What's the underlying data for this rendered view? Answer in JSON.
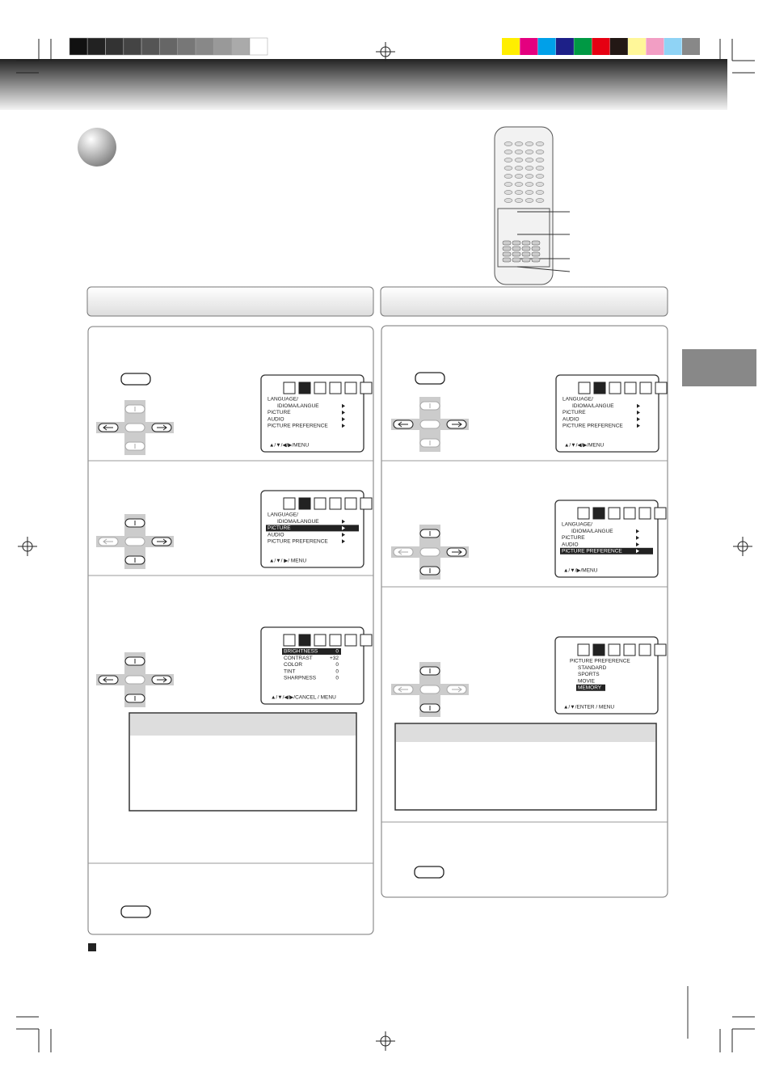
{
  "left_column": {
    "screens": [
      {
        "lines": [
          "LANGUAGE/",
          "IDIOMA/LANGUE",
          "PICTURE",
          "AUDIO",
          "PICTURE  PREFERENCE"
        ],
        "footer": "▲/▼/◀/▶/MENU"
      },
      {
        "lines": [
          "LANGUAGE/",
          "IDIOMA/LANGUE",
          "PICTURE",
          "AUDIO",
          "PICTURE  PREFERENCE"
        ],
        "footer": "▲/▼/ ▶/ MENU",
        "selected": 2
      },
      {
        "lines": [
          {
            "label": "BRIGHTNESS",
            "value": "0"
          },
          {
            "label": "CONTRAST",
            "value": "+32"
          },
          {
            "label": "COLOR",
            "value": "0"
          },
          {
            "label": "TINT",
            "value": "0"
          },
          {
            "label": "SHARPNESS",
            "value": "0"
          }
        ],
        "footer": "▲/▼/◀/▶/CANCEL / MENU",
        "selected": 0
      }
    ]
  },
  "right_column": {
    "screens": [
      {
        "lines": [
          "LANGUAGE/",
          "IDIOMA/LANGUE",
          "PICTURE",
          "AUDIO",
          "PICTURE  PREFERENCE"
        ],
        "footer": "▲/▼/◀/▶/MENU"
      },
      {
        "lines": [
          "LANGUAGE/",
          "IDIOMA/LANGUE",
          "PICTURE",
          "AUDIO",
          "PICTURE  PREFERENCE"
        ],
        "footer": "▲/▼/▶/MENU",
        "selected": 4
      },
      {
        "lines": [
          "PICTURE PREFERENCE",
          "STANDARD",
          "SPORTS",
          "MOVIE",
          "MEMORY"
        ],
        "footer": "▲/▼/ENTER / MENU",
        "selected": 4
      }
    ]
  }
}
